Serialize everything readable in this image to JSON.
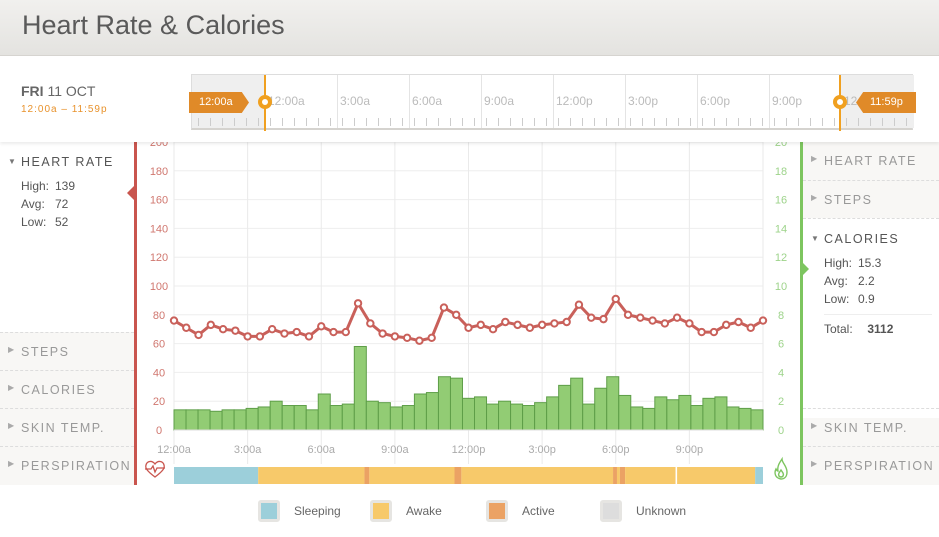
{
  "title": "Heart Rate & Calories",
  "date": {
    "day": "FRI",
    "date": "11 OCT",
    "range": "12:00a – 11:59p"
  },
  "timeline": {
    "labels": [
      "12:00a",
      "3:00a",
      "6:00a",
      "9:00a",
      "12:00p",
      "3:00p",
      "6:00p",
      "9:00p",
      "12"
    ],
    "start_flag": "12:00a",
    "end_flag": "11:59p",
    "accent": "#e08a28"
  },
  "left_sidebar": {
    "open": {
      "label": "HEART RATE",
      "stats": [
        {
          "k": "High:",
          "v": "139"
        },
        {
          "k": "Avg:",
          "v": "72"
        },
        {
          "k": "Low:",
          "v": "52"
        }
      ]
    },
    "items": [
      "STEPS",
      "CALORIES",
      "SKIN TEMP.",
      "PERSPIRATION"
    ]
  },
  "right_sidebar": {
    "items_top": [
      "HEART RATE",
      "STEPS"
    ],
    "open": {
      "label": "CALORIES",
      "stats": [
        {
          "k": "High:",
          "v": "15.3"
        },
        {
          "k": "Avg:",
          "v": "2.2"
        },
        {
          "k": "Low:",
          "v": "0.9"
        }
      ],
      "total_label": "Total:",
      "total": "3112"
    },
    "items_bottom": [
      "SKIN TEMP.",
      "PERSPIRATION"
    ]
  },
  "chart_data": {
    "type": "line+bar",
    "x_ticks": [
      "12:00a",
      "3:00a",
      "6:00a",
      "9:00a",
      "12:00p",
      "3:00p",
      "6:00p",
      "9:00p"
    ],
    "left_axis": {
      "ylim": [
        0,
        200
      ],
      "ticks": [
        0,
        20,
        40,
        60,
        80,
        100,
        120,
        140,
        160,
        180,
        200
      ],
      "color": "#d0776f"
    },
    "right_axis": {
      "ylim": [
        0,
        20
      ],
      "ticks": [
        0,
        2,
        4,
        6,
        8,
        10,
        12,
        14,
        16,
        18,
        20
      ],
      "color": "#9dd38a"
    },
    "series": [
      {
        "name": "Heart Rate",
        "type": "line",
        "axis": "left",
        "color": "#c9605a",
        "values": [
          76,
          71,
          66,
          73,
          70,
          69,
          65,
          65,
          70,
          67,
          68,
          65,
          72,
          68,
          68,
          88,
          74,
          67,
          65,
          64,
          62,
          64,
          85,
          80,
          71,
          73,
          70,
          75,
          73,
          71,
          73,
          74,
          75,
          87,
          78,
          77,
          91,
          80,
          78,
          76,
          74,
          78,
          74,
          68,
          68,
          73,
          75,
          71,
          76
        ]
      },
      {
        "name": "Calories",
        "type": "bar",
        "axis": "right",
        "color": "#92cc74",
        "values": [
          1.4,
          1.4,
          1.4,
          1.3,
          1.4,
          1.4,
          1.5,
          1.6,
          2.0,
          1.7,
          1.7,
          1.4,
          2.5,
          1.7,
          1.8,
          5.8,
          2.0,
          1.9,
          1.6,
          1.7,
          2.5,
          2.6,
          3.7,
          3.6,
          2.2,
          2.3,
          1.8,
          2.0,
          1.8,
          1.7,
          1.9,
          2.3,
          3.1,
          3.6,
          1.8,
          2.9,
          3.7,
          2.4,
          1.6,
          1.5,
          2.3,
          2.1,
          2.4,
          1.7,
          2.2,
          2.3,
          1.6,
          1.5,
          1.4
        ]
      }
    ],
    "activity": [
      {
        "state": "Sleeping",
        "start_h": 0,
        "end_h": 3.43
      },
      {
        "state": "Awake",
        "start_h": 3.43,
        "end_h": 7.76
      },
      {
        "state": "Active",
        "start_h": 7.76,
        "end_h": 7.96
      },
      {
        "state": "Awake",
        "start_h": 7.96,
        "end_h": 11.43
      },
      {
        "state": "Active",
        "start_h": 11.43,
        "end_h": 11.71
      },
      {
        "state": "Awake",
        "start_h": 11.71,
        "end_h": 17.89
      },
      {
        "state": "Active",
        "start_h": 17.89,
        "end_h": 18.05
      },
      {
        "state": "Awake",
        "start_h": 18.05,
        "end_h": 18.17
      },
      {
        "state": "Active",
        "start_h": 18.17,
        "end_h": 18.38
      },
      {
        "state": "Awake",
        "start_h": 18.38,
        "end_h": 20.44
      },
      {
        "state": "Unknown",
        "start_h": 20.44,
        "end_h": 20.5
      },
      {
        "state": "Awake",
        "start_h": 20.5,
        "end_h": 23.68
      },
      {
        "state": "Sleeping",
        "start_h": 23.68,
        "end_h": 24
      }
    ],
    "grid": true
  },
  "legend": [
    {
      "label": "Sleeping",
      "color": "#9ccfda"
    },
    {
      "label": "Awake",
      "color": "#f7c96a"
    },
    {
      "label": "Active",
      "color": "#eba264"
    },
    {
      "label": "Unknown",
      "color": "#dddddd"
    }
  ],
  "icons": {
    "left_axis": "heart-rate-icon",
    "right_axis": "flame-icon"
  }
}
